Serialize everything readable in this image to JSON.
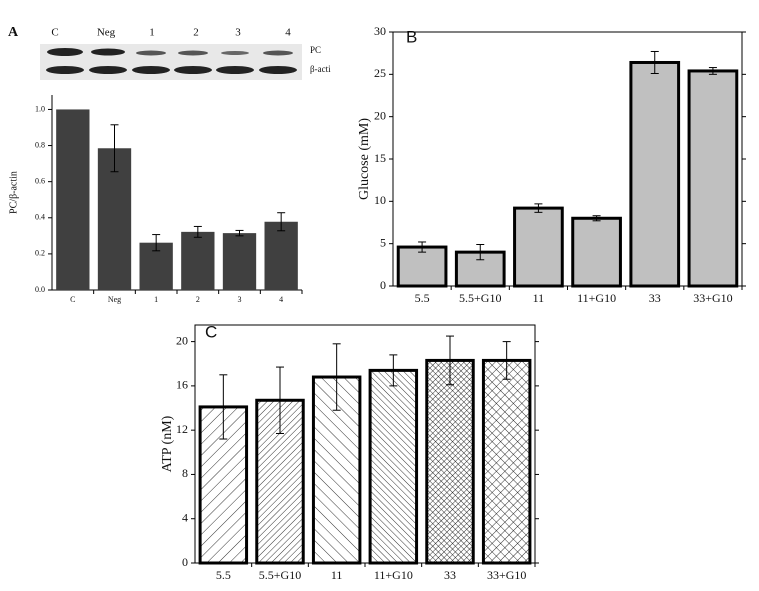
{
  "chart_data": [
    {
      "type": "bar",
      "panel": "A",
      "ylabel": "PC/β-actin",
      "categories": [
        "C",
        "Neg",
        "1",
        "2",
        "3",
        "4"
      ],
      "values": [
        1.0,
        0.785,
        0.262,
        0.322,
        0.315,
        0.378
      ],
      "errors": [
        0,
        0.13,
        0.045,
        0.03,
        0.015,
        0.05
      ],
      "color": "#404040",
      "ylim": [
        0,
        1.08
      ],
      "yticks": [
        {
          "value": 0,
          "label": "0.0"
        },
        0.2,
        0.4,
        0.6,
        0.8,
        {
          "value": 1,
          "label": "1.0"
        }
      ],
      "blot_labels": [
        "PC",
        "β-acti"
      ]
    },
    {
      "type": "bar",
      "panel": "B",
      "ylabel": "Glucose (mM)",
      "categories": [
        "5.5",
        "5.5+G10",
        "11",
        "11+G10",
        "33",
        "33+G10"
      ],
      "values": [
        4.6,
        4.0,
        9.2,
        8.0,
        26.4,
        25.4
      ],
      "errors": [
        0.6,
        0.9,
        0.5,
        0.3,
        1.3,
        0.4
      ],
      "color": "#c0c0c0",
      "edgecolor": "#000000",
      "ylim": [
        0,
        30
      ],
      "yticks": [
        0,
        5,
        10,
        15,
        20,
        25,
        30
      ]
    },
    {
      "type": "bar",
      "panel": "C",
      "ylabel": "ATP (nM)",
      "categories": [
        "5.5",
        "5.5+G10",
        "11",
        "11+G10",
        "33",
        "33+G10"
      ],
      "values": [
        14.1,
        14.7,
        16.8,
        17.4,
        18.3,
        18.3
      ],
      "errors": [
        2.9,
        3.0,
        3.0,
        1.4,
        2.2,
        1.7
      ],
      "color": "#ffffff",
      "edgecolor": "#000000",
      "hatches": [
        "/",
        "//",
        "\\",
        "\\\\",
        "xx",
        "x"
      ],
      "ylim": [
        0,
        21.5
      ],
      "yticks": [
        0,
        4,
        8,
        12,
        16,
        20
      ]
    }
  ]
}
